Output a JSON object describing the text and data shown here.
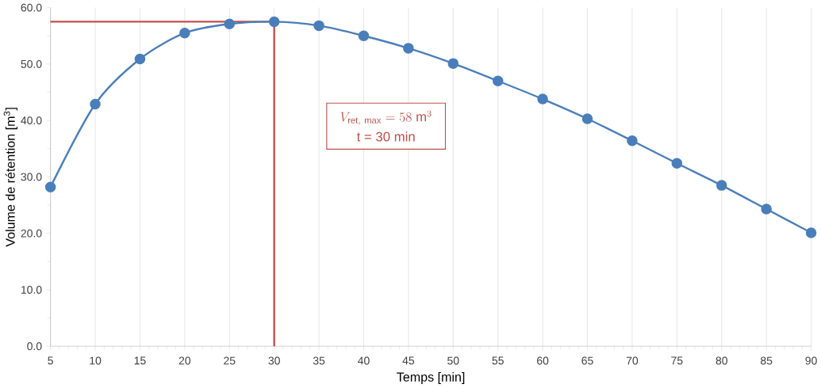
{
  "chart_data": {
    "type": "line",
    "xlabel": "Temps [min]",
    "ylabel": "Volume de rétention  [m$^{3}$]",
    "x": [
      5,
      10,
      15,
      20,
      25,
      30,
      35,
      40,
      45,
      50,
      55,
      60,
      65,
      70,
      75,
      80,
      85,
      90
    ],
    "series": [
      {
        "color": "#4a7ebb",
        "values": [
          28.2,
          42.9,
          50.9,
          55.5,
          57.1,
          57.5,
          56.8,
          55.0,
          52.8,
          50.1,
          47.0,
          43.8,
          40.3,
          36.4,
          32.4,
          28.5,
          24.3,
          20.1
        ]
      }
    ],
    "xlim": [
      5,
      90
    ],
    "xticks": [
      5,
      10,
      15,
      20,
      25,
      30,
      35,
      40,
      45,
      50,
      55,
      60,
      65,
      70,
      75,
      80,
      85,
      90
    ],
    "ylim": [
      0,
      60
    ],
    "yticks": [
      {
        "value": 0,
        "label": "0.0"
      },
      {
        "value": 10,
        "label": "10.0"
      },
      {
        "value": 20,
        "label": "20.0"
      },
      {
        "value": 30,
        "label": "30.0"
      },
      {
        "value": 40,
        "label": "40.0"
      },
      {
        "value": 50,
        "label": "50.0"
      },
      {
        "value": 60,
        "label": "60.0"
      }
    ],
    "grid": "x",
    "marker": "circle",
    "line_style": "solid",
    "ref_lines": [
      {
        "axis": "y",
        "value": 57.5,
        "color": "#c0504d"
      },
      {
        "axis": "x",
        "value": 30,
        "color": "#c0504d"
      }
    ],
    "annotations": [
      "V_{\\mathrm{ret,\\ max}} = 58\\ \\mathrm{m}^{3}",
      "t = 30 min"
    ]
  }
}
